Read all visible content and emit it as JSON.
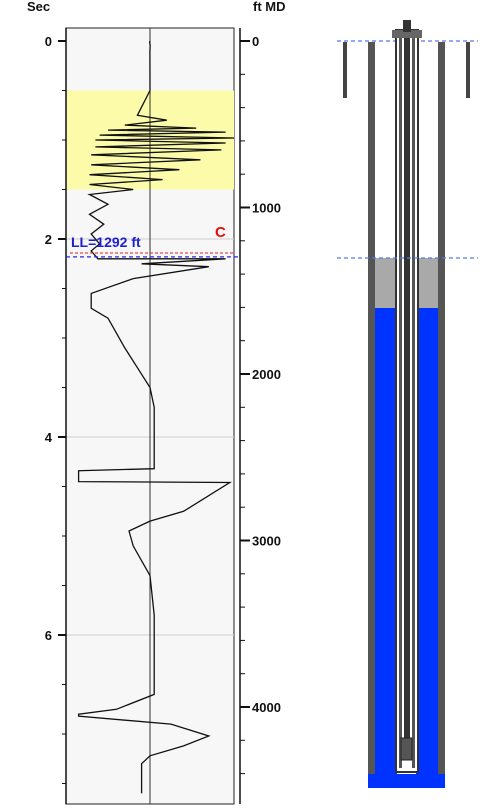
{
  "chart_data": {
    "type": "line",
    "left_axis": {
      "label": "Sec",
      "range": [
        0,
        7.6
      ],
      "ticks": [
        0,
        2,
        4,
        6
      ],
      "tick_labels": [
        "0",
        "2",
        "4",
        "6"
      ]
    },
    "right_axis": {
      "label": "ft MD",
      "range": [
        0,
        4450
      ],
      "ticks": [
        0,
        1000,
        2000,
        3000,
        4000
      ],
      "tick_labels": [
        "0",
        "1000",
        "2000",
        "3000",
        "4000"
      ]
    },
    "highlight_band_sec": [
      0.5,
      1.5
    ],
    "liquid_level": {
      "label": "LL=1292 ft",
      "depth_ft": 1292,
      "time_sec": 2.16
    },
    "collar_marker": {
      "label": "C",
      "time_sec": 2.03
    },
    "trace_points": [
      [
        -0.003,
        0.0
      ],
      [
        -0.003,
        0.02
      ],
      [
        0.002,
        0.04
      ],
      [
        -0.001,
        0.1
      ],
      [
        0.0,
        0.5
      ],
      [
        -0.15,
        0.75
      ],
      [
        0.2,
        0.8
      ],
      [
        -0.3,
        0.85
      ],
      [
        0.55,
        0.88
      ],
      [
        -0.5,
        0.9
      ],
      [
        0.9,
        0.92
      ],
      [
        -0.6,
        0.95
      ],
      [
        1.0,
        0.98
      ],
      [
        -0.65,
        1.0
      ],
      [
        0.9,
        1.03
      ],
      [
        -0.65,
        1.07
      ],
      [
        0.85,
        1.1
      ],
      [
        -0.7,
        1.15
      ],
      [
        0.6,
        1.2
      ],
      [
        -0.7,
        1.25
      ],
      [
        0.35,
        1.3
      ],
      [
        -0.72,
        1.35
      ],
      [
        0.15,
        1.4
      ],
      [
        -0.72,
        1.45
      ],
      [
        -0.2,
        1.5
      ],
      [
        -0.72,
        1.55
      ],
      [
        -0.5,
        1.65
      ],
      [
        -0.72,
        1.75
      ],
      [
        -0.55,
        1.85
      ],
      [
        -0.7,
        1.95
      ],
      [
        -0.6,
        2.05
      ],
      [
        -0.7,
        2.12
      ],
      [
        -0.62,
        2.2
      ],
      [
        0.9,
        2.2
      ],
      [
        -0.1,
        2.25
      ],
      [
        0.7,
        2.28
      ],
      [
        -0.2,
        2.4
      ],
      [
        -0.7,
        2.55
      ],
      [
        -0.7,
        2.7
      ],
      [
        -0.5,
        2.8
      ],
      [
        -0.4,
        2.95
      ],
      [
        -0.3,
        3.1
      ],
      [
        -0.15,
        3.3
      ],
      [
        0.0,
        3.5
      ],
      [
        0.05,
        3.7
      ],
      [
        0.05,
        3.9
      ],
      [
        0.05,
        4.1
      ],
      [
        0.05,
        4.3
      ],
      [
        0.05,
        4.32
      ],
      [
        -0.85,
        4.34
      ],
      [
        -0.85,
        4.45
      ],
      [
        0.95,
        4.46
      ],
      [
        0.4,
        4.75
      ],
      [
        0.0,
        4.85
      ],
      [
        -0.25,
        4.95
      ],
      [
        -0.2,
        5.1
      ],
      [
        0.0,
        5.4
      ],
      [
        0.05,
        5.8
      ],
      [
        0.05,
        6.2
      ],
      [
        0.05,
        6.6
      ],
      [
        -0.4,
        6.75
      ],
      [
        -0.85,
        6.8
      ],
      [
        -0.85,
        6.82
      ],
      [
        0.25,
        6.9
      ],
      [
        0.7,
        7.02
      ],
      [
        0.4,
        7.12
      ],
      [
        0.0,
        7.22
      ],
      [
        -0.1,
        7.3
      ],
      [
        -0.1,
        7.45
      ],
      [
        -0.1,
        7.6
      ]
    ],
    "wellbore": {
      "casing_color": "#5a5a5a",
      "fluid_color": "#0033ff",
      "gas_column_color": "#a9a9a9"
    }
  }
}
